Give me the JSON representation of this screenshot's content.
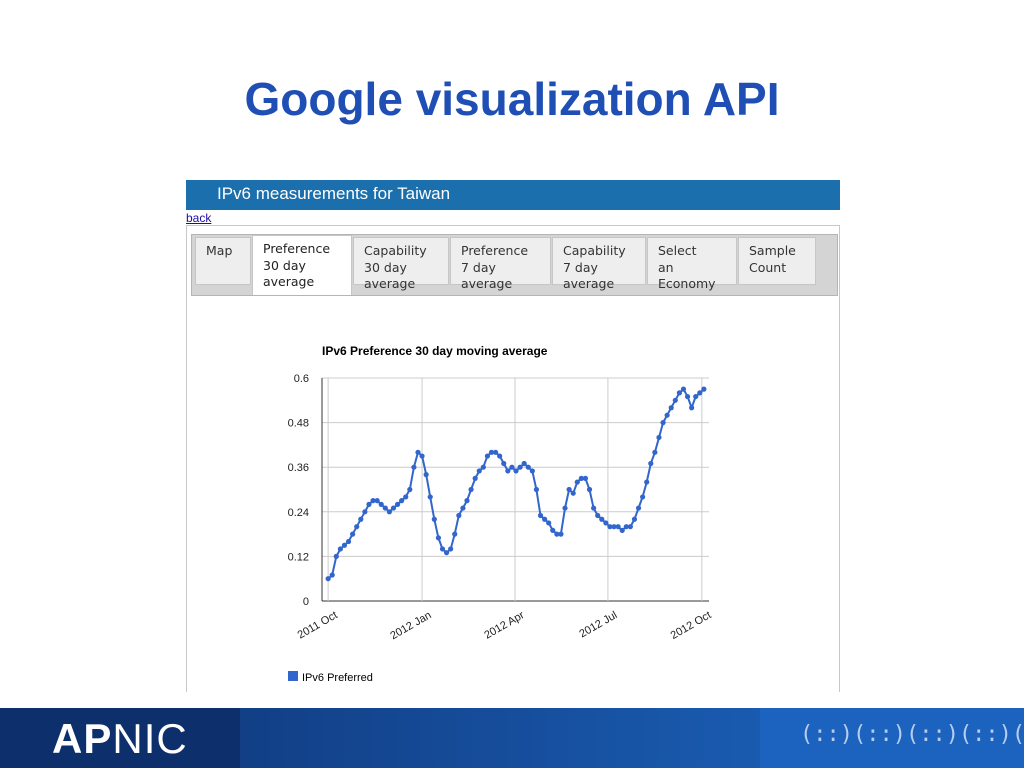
{
  "slide": {
    "title": "Google visualization API"
  },
  "page": {
    "header_title": "IPv6 measurements for Taiwan",
    "back_link": "back"
  },
  "tabs": [
    {
      "label": "Map",
      "active": false
    },
    {
      "label": "Preference\n30 day\naverage",
      "active": true
    },
    {
      "label": "Capability\n30 day\naverage",
      "active": false
    },
    {
      "label": "Preference\n7 day\naverage",
      "active": false
    },
    {
      "label": "Capability\n7 day\naverage",
      "active": false
    },
    {
      "label": "Select\nan\nEconomy",
      "active": false
    },
    {
      "label": "Sample\nCount",
      "active": false
    }
  ],
  "chart_data": {
    "type": "line",
    "title": "IPv6 Preference 30 day moving average",
    "xlabel": "",
    "ylabel": "",
    "ylim": [
      0,
      0.6
    ],
    "y_ticks": [
      "0",
      "0.12",
      "0.24",
      "0.36",
      "0.48",
      "0.6"
    ],
    "x_ticks": [
      "2011 Oct",
      "2012 Jan",
      "2012 Apr",
      "2012 Jul",
      "2012 Oct"
    ],
    "grid": true,
    "legend": "bottom-left",
    "series": [
      {
        "name": "IPv6 Preferred",
        "color": "#3366cc",
        "points": [
          [
            "2011-10-01",
            0.06
          ],
          [
            "2011-10-05",
            0.07
          ],
          [
            "2011-10-09",
            0.12
          ],
          [
            "2011-10-13",
            0.14
          ],
          [
            "2011-10-17",
            0.15
          ],
          [
            "2011-10-21",
            0.16
          ],
          [
            "2011-10-25",
            0.18
          ],
          [
            "2011-10-29",
            0.2
          ],
          [
            "2011-11-02",
            0.22
          ],
          [
            "2011-11-06",
            0.24
          ],
          [
            "2011-11-10",
            0.26
          ],
          [
            "2011-11-14",
            0.27
          ],
          [
            "2011-11-18",
            0.27
          ],
          [
            "2011-11-22",
            0.26
          ],
          [
            "2011-11-26",
            0.25
          ],
          [
            "2011-11-30",
            0.24
          ],
          [
            "2011-12-04",
            0.25
          ],
          [
            "2011-12-08",
            0.26
          ],
          [
            "2011-12-12",
            0.27
          ],
          [
            "2011-12-16",
            0.28
          ],
          [
            "2011-12-20",
            0.3
          ],
          [
            "2011-12-24",
            0.36
          ],
          [
            "2011-12-28",
            0.4
          ],
          [
            "2012-01-01",
            0.39
          ],
          [
            "2012-01-05",
            0.34
          ],
          [
            "2012-01-09",
            0.28
          ],
          [
            "2012-01-13",
            0.22
          ],
          [
            "2012-01-17",
            0.17
          ],
          [
            "2012-01-21",
            0.14
          ],
          [
            "2012-01-25",
            0.13
          ],
          [
            "2012-01-29",
            0.14
          ],
          [
            "2012-02-02",
            0.18
          ],
          [
            "2012-02-06",
            0.23
          ],
          [
            "2012-02-10",
            0.25
          ],
          [
            "2012-02-14",
            0.27
          ],
          [
            "2012-02-18",
            0.3
          ],
          [
            "2012-02-22",
            0.33
          ],
          [
            "2012-02-26",
            0.35
          ],
          [
            "2012-03-01",
            0.36
          ],
          [
            "2012-03-05",
            0.39
          ],
          [
            "2012-03-09",
            0.4
          ],
          [
            "2012-03-13",
            0.4
          ],
          [
            "2012-03-17",
            0.39
          ],
          [
            "2012-03-21",
            0.37
          ],
          [
            "2012-03-25",
            0.35
          ],
          [
            "2012-03-29",
            0.36
          ],
          [
            "2012-04-02",
            0.35
          ],
          [
            "2012-04-06",
            0.36
          ],
          [
            "2012-04-10",
            0.37
          ],
          [
            "2012-04-14",
            0.36
          ],
          [
            "2012-04-18",
            0.35
          ],
          [
            "2012-04-22",
            0.3
          ],
          [
            "2012-04-26",
            0.23
          ],
          [
            "2012-04-30",
            0.22
          ],
          [
            "2012-05-04",
            0.21
          ],
          [
            "2012-05-08",
            0.19
          ],
          [
            "2012-05-12",
            0.18
          ],
          [
            "2012-05-16",
            0.18
          ],
          [
            "2012-05-20",
            0.25
          ],
          [
            "2012-05-24",
            0.3
          ],
          [
            "2012-05-28",
            0.29
          ],
          [
            "2012-06-01",
            0.32
          ],
          [
            "2012-06-05",
            0.33
          ],
          [
            "2012-06-09",
            0.33
          ],
          [
            "2012-06-13",
            0.3
          ],
          [
            "2012-06-17",
            0.25
          ],
          [
            "2012-06-21",
            0.23
          ],
          [
            "2012-06-25",
            0.22
          ],
          [
            "2012-06-29",
            0.21
          ],
          [
            "2012-07-03",
            0.2
          ],
          [
            "2012-07-07",
            0.2
          ],
          [
            "2012-07-11",
            0.2
          ],
          [
            "2012-07-15",
            0.19
          ],
          [
            "2012-07-19",
            0.2
          ],
          [
            "2012-07-23",
            0.2
          ],
          [
            "2012-07-27",
            0.22
          ],
          [
            "2012-07-31",
            0.25
          ],
          [
            "2012-08-04",
            0.28
          ],
          [
            "2012-08-08",
            0.32
          ],
          [
            "2012-08-12",
            0.37
          ],
          [
            "2012-08-16",
            0.4
          ],
          [
            "2012-08-20",
            0.44
          ],
          [
            "2012-08-24",
            0.48
          ],
          [
            "2012-08-28",
            0.5
          ],
          [
            "2012-09-01",
            0.52
          ],
          [
            "2012-09-05",
            0.54
          ],
          [
            "2012-09-09",
            0.56
          ],
          [
            "2012-09-13",
            0.57
          ],
          [
            "2012-09-17",
            0.55
          ],
          [
            "2012-09-21",
            0.52
          ],
          [
            "2012-09-25",
            0.55
          ],
          [
            "2012-09-29",
            0.56
          ],
          [
            "2012-10-03",
            0.57
          ]
        ]
      }
    ]
  }
}
